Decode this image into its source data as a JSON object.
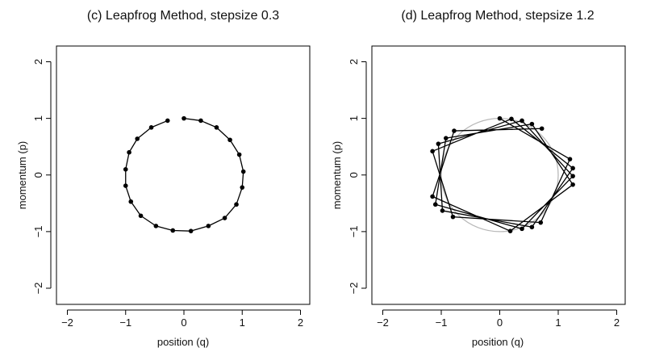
{
  "chart_data": [
    {
      "type": "line",
      "title": "(c) Leapfrog Method, stepsize 0.3",
      "xlabel": "position (q)",
      "ylabel": "momentum (p)",
      "xlim": [
        -2.2,
        2.2
      ],
      "ylim": [
        -2.2,
        2.2
      ],
      "xticks": [
        -2,
        -1,
        0,
        1,
        2
      ],
      "yticks": [
        -2,
        -1,
        0,
        1,
        2
      ],
      "xtick_labels": [
        "−2",
        "−1",
        "0",
        "1",
        "2"
      ],
      "ytick_labels": [
        "−2",
        "−1",
        "0",
        "1",
        "2"
      ],
      "grid": false,
      "series": [
        {
          "style": "line-with-points",
          "color": "#000000",
          "points": [
            [
              0.0,
              1.0
            ],
            [
              0.29,
              0.96
            ],
            [
              0.56,
              0.84
            ],
            [
              0.79,
              0.62
            ],
            [
              0.95,
              0.36
            ],
            [
              1.02,
              0.06
            ],
            [
              1.0,
              -0.22
            ],
            [
              0.9,
              -0.52
            ],
            [
              0.7,
              -0.76
            ],
            [
              0.42,
              -0.9
            ],
            [
              0.12,
              -0.99
            ],
            [
              -0.19,
              -0.98
            ],
            [
              -0.48,
              -0.9
            ],
            [
              -0.74,
              -0.72
            ],
            [
              -0.91,
              -0.47
            ],
            [
              -1.0,
              -0.19
            ],
            [
              -1.0,
              0.1
            ],
            [
              -0.94,
              0.4
            ],
            [
              -0.8,
              0.64
            ],
            [
              -0.56,
              0.84
            ],
            [
              -0.28,
              0.96
            ]
          ]
        }
      ]
    },
    {
      "type": "line",
      "title": "(d) Leapfrog Method, stepsize 1.2",
      "xlabel": "position (q)",
      "ylabel": "momentum (p)",
      "xlim": [
        -2.2,
        2.2
      ],
      "ylim": [
        -2.2,
        2.2
      ],
      "xticks": [
        -2,
        -1,
        0,
        1,
        2
      ],
      "yticks": [
        -2,
        -1,
        0,
        1,
        2
      ],
      "xtick_labels": [
        "−2",
        "−1",
        "0",
        "1",
        "2"
      ],
      "ytick_labels": [
        "−2",
        "−1",
        "0",
        "1",
        "2"
      ],
      "grid": false,
      "series": [
        {
          "style": "reference-circle",
          "color": "#b8b8b8",
          "center": [
            0,
            0
          ],
          "radius": 1
        },
        {
          "style": "line-with-points",
          "color": "#000000",
          "points": [
            [
              0.0,
              1.0
            ],
            [
              1.2,
              0.28
            ],
            [
              0.7,
              -0.84
            ],
            [
              -0.8,
              -0.74
            ],
            [
              -1.15,
              0.42
            ],
            [
              0.2,
              0.99
            ],
            [
              1.25,
              0.12
            ],
            [
              0.55,
              -0.92
            ],
            [
              -0.98,
              -0.63
            ],
            [
              -1.05,
              0.55
            ],
            [
              0.38,
              0.96
            ],
            [
              1.25,
              -0.02
            ],
            [
              0.38,
              -0.95
            ],
            [
              -1.1,
              -0.52
            ],
            [
              -0.92,
              0.65
            ],
            [
              0.55,
              0.9
            ],
            [
              1.25,
              -0.17
            ],
            [
              0.18,
              -0.99
            ],
            [
              -1.15,
              -0.38
            ],
            [
              -0.78,
              0.78
            ],
            [
              0.72,
              0.82
            ]
          ]
        }
      ]
    }
  ]
}
